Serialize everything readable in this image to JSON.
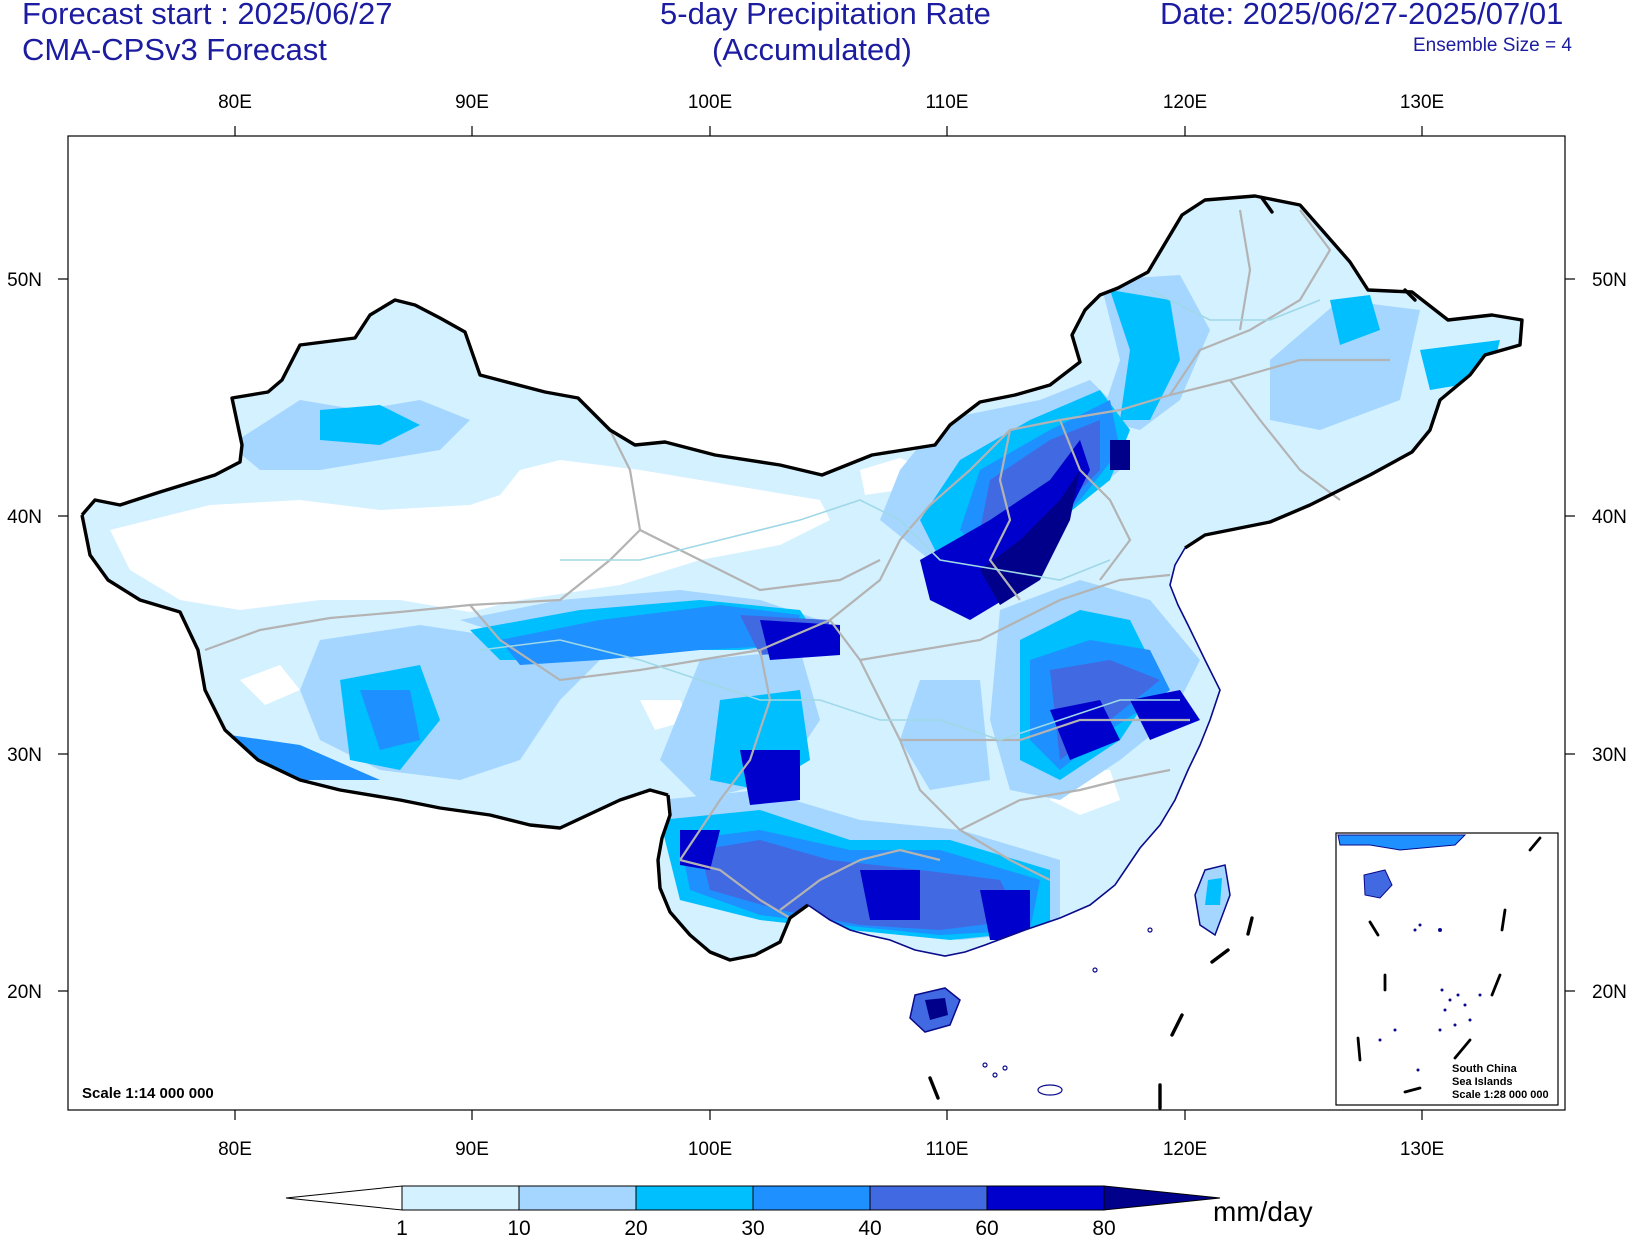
{
  "header": {
    "forecast_start": "Forecast start : 2025/06/27",
    "model": "CMA-CPSv3 Forecast",
    "title_line1": "5-day Precipitation Rate",
    "title_line2": "(Accumulated)",
    "date_range": "Date: 2025/06/27-2025/07/01",
    "ensemble": "Ensemble Size = 4"
  },
  "axes": {
    "longitudes": [
      "80E",
      "90E",
      "100E",
      "110E",
      "120E",
      "130E"
    ],
    "latitudes": [
      "50N",
      "40N",
      "30N",
      "20N"
    ]
  },
  "map": {
    "scale_label": "Scale 1:14 000 000",
    "inset": {
      "line1": "South China",
      "line2": "Sea Islands",
      "line3": "Scale 1:28 000 000"
    }
  },
  "colorbar": {
    "levels": [
      "1",
      "10",
      "20",
      "30",
      "40",
      "60",
      "80"
    ],
    "unit": "mm/day",
    "colors": [
      "#ffffff",
      "#d4f1ff",
      "#a4d6ff",
      "#00bfff",
      "#1e90ff",
      "#4169e1",
      "#0000cd",
      "#00008b"
    ]
  }
}
